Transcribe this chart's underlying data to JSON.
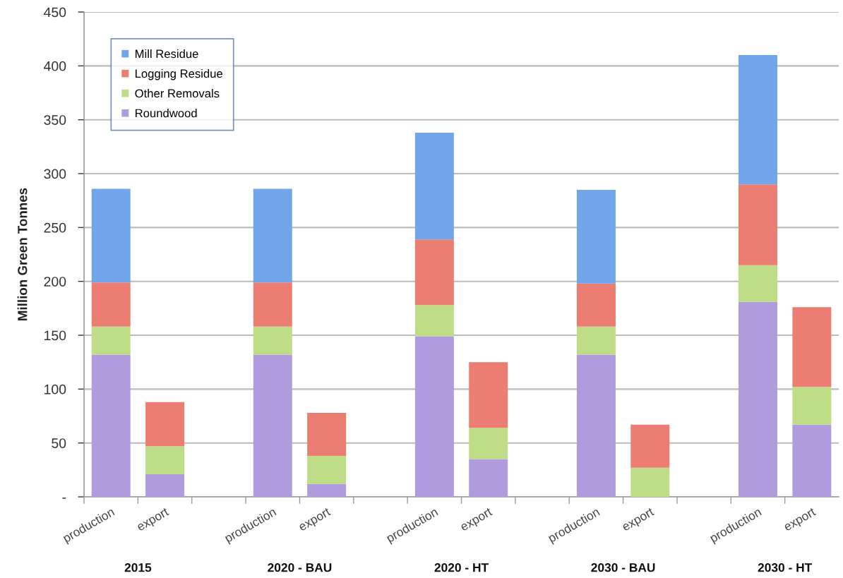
{
  "chart_data": {
    "type": "bar",
    "stacked": true,
    "ylabel": "Million Green Tonnes",
    "categories": [
      "production",
      "export",
      null,
      "production",
      "export",
      null,
      "production",
      "export",
      null,
      "production",
      "export",
      null,
      "production",
      "export"
    ],
    "series": [
      {
        "name": "Roundwood",
        "color": "#b09cdc",
        "values": [
          132,
          21,
          null,
          132,
          12,
          null,
          149,
          35,
          null,
          132,
          null,
          null,
          181,
          67
        ]
      },
      {
        "name": "Other Removals",
        "color": "#bfdd86",
        "values": [
          26,
          26,
          null,
          26,
          26,
          null,
          29,
          29,
          null,
          26,
          27,
          null,
          34,
          35
        ]
      },
      {
        "name": "Logging Residue",
        "color": "#ec7d72",
        "values": [
          41,
          41,
          null,
          41,
          40,
          null,
          61,
          61,
          null,
          40,
          40,
          null,
          75,
          74
        ]
      },
      {
        "name": "Mill Residue",
        "color": "#72a6ea",
        "values": [
          87,
          null,
          null,
          87,
          null,
          null,
          99,
          null,
          null,
          87,
          null,
          null,
          120,
          null
        ]
      }
    ],
    "annotations": [
      "2015",
      "2020 - BAU",
      "2020 - HT",
      "2030 - BAU",
      "2030 - HT"
    ],
    "ylim": [
      0,
      450
    ],
    "yticks": [
      {
        "value": 0,
        "label": "-"
      },
      50,
      100,
      150,
      200,
      250,
      300,
      350,
      400,
      450
    ],
    "grid": "y",
    "legend": "top left"
  }
}
